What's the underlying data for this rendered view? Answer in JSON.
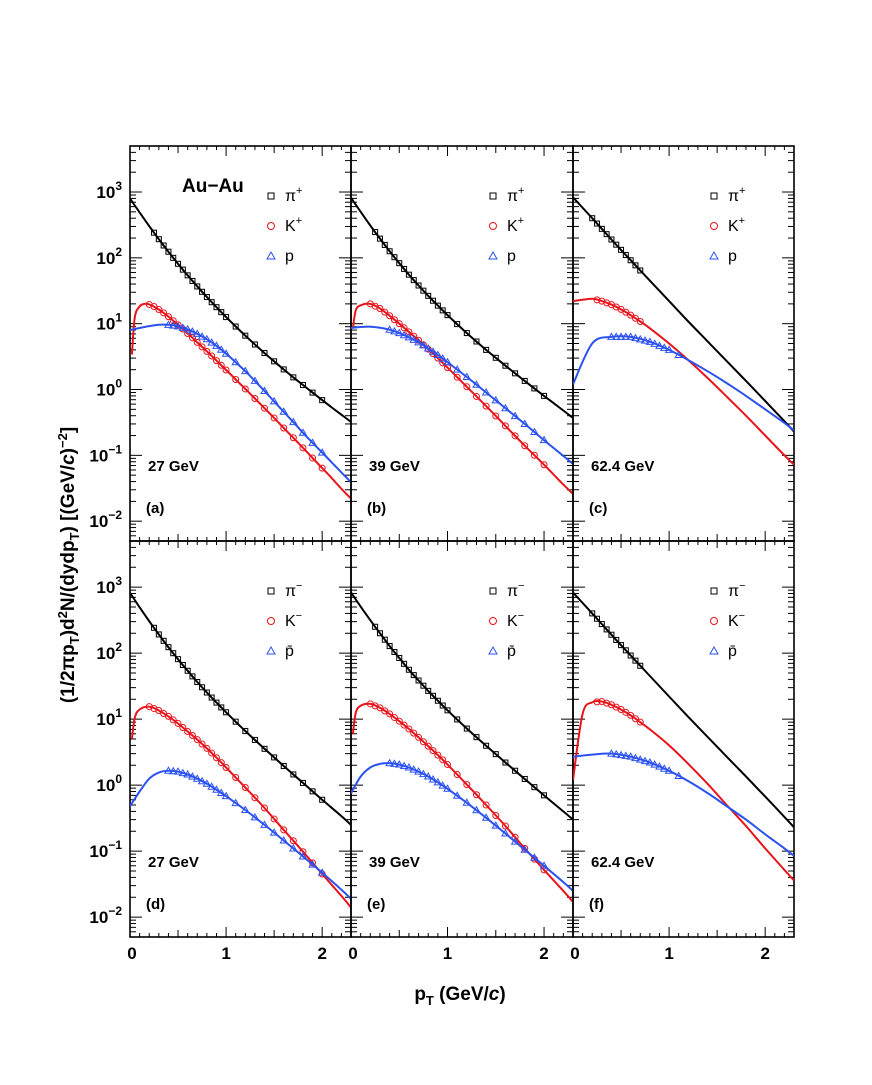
{
  "figure": {
    "ylabel_pre": "(1/2πp",
    "ylabel_mid": ")d",
    "ylabel_exp2": "2",
    "ylabel_n": "N/(dydp",
    "ylabel_end": ") [(GeV/",
    "ylabel_c": "c",
    "ylabel_end2": ")",
    "ylabel_expm2": "−2",
    "ylabel_close": "]",
    "ylabel_sub": "T",
    "xlabel_p": "p",
    "xlabel_sub": "T",
    "xlabel_unit": " (GeV/",
    "xlabel_c": "c",
    "xlabel_close": ")",
    "system_label": "Au−Au"
  },
  "colors": {
    "pion": "#000000",
    "kaon": "#e8141b",
    "proton": "#2b52f0"
  },
  "chart_data": [
    {
      "type": "scatter",
      "panel": "(a)",
      "energy": "27 GeV",
      "xlim": [
        0,
        2.3
      ],
      "ylim": [
        0.005,
        5000
      ],
      "yscale": "log",
      "xticks": [
        "0",
        "1",
        "2"
      ],
      "yticks": [
        "10^-2",
        "10^-1",
        "10^0",
        "10^1",
        "10^2",
        "10^3"
      ],
      "legend": [
        "π+",
        "K+",
        "p"
      ],
      "series": [
        {
          "name": "π+",
          "marker": "square",
          "fit": {
            "A": 800,
            "T": 0.245,
            "rise": 0
          },
          "x": [
            0.0,
            0.05,
            0.1,
            0.15,
            0.2,
            0.25,
            0.3,
            0.35,
            0.4,
            0.45,
            0.5,
            0.55,
            0.6,
            0.65,
            0.7,
            0.75,
            0.8,
            0.85,
            0.9,
            1.0,
            1.1,
            1.2,
            1.3,
            1.4,
            1.5,
            1.6,
            1.7,
            1.8,
            1.9,
            2.0,
            2.1,
            2.2,
            2.3
          ],
          "y": [
            800,
            625,
            490,
            385,
            304,
            241,
            192,
            154,
            124,
            100,
            81.2,
            66.2,
            54.2,
            44.6,
            36.8,
            30.5,
            25.4,
            21.2,
            17.8,
            12.6,
            9.05,
            6.58,
            4.83,
            3.58,
            2.68,
            2.02,
            1.53,
            1.17,
            0.897,
            0.69,
            0.533,
            0.414,
            0.322
          ]
        },
        {
          "name": "K+",
          "marker": "circle",
          "fit": {
            "A": 108,
            "T": 0.23,
            "rise": 0.12
          },
          "x": [
            0.02,
            0.05,
            0.1,
            0.15,
            0.2,
            0.25,
            0.3,
            0.35,
            0.4,
            0.45,
            0.5,
            0.55,
            0.6,
            0.65,
            0.7,
            0.8,
            0.9,
            1.0,
            1.1,
            1.2,
            1.3,
            1.4,
            1.5,
            1.6,
            1.7,
            1.8,
            1.9,
            2.0,
            2.1,
            2.2,
            2.3
          ],
          "y": [
            3.4,
            12.5,
            18.3,
            20.0,
            19.6,
            18.2,
            16.4,
            14.6,
            12.8,
            11.1,
            9.6,
            8.3,
            7.1,
            6.1,
            5.2,
            3.8,
            2.75,
            1.98,
            1.42,
            1.02,
            0.73,
            0.52,
            0.37,
            0.26,
            0.185,
            0.13,
            0.091,
            0.064,
            0.045,
            0.031,
            0.022
          ]
        },
        {
          "name": "p",
          "marker": "triangle",
          "fit": {
            "A": 11,
            "T": 0.4,
            "rise": 0
          },
          "x": [
            0.0,
            0.1,
            0.2,
            0.3,
            0.4,
            0.5,
            0.6,
            0.7,
            0.8,
            0.9,
            1.0,
            1.1,
            1.2,
            1.3,
            1.4,
            1.5,
            1.6,
            1.7,
            1.8,
            1.9,
            2.0,
            2.1,
            2.2,
            2.3
          ],
          "y": [
            8.0,
            8.6,
            9.2,
            9.6,
            9.6,
            9.1,
            8.2,
            7.0,
            5.8,
            4.6,
            3.5,
            2.6,
            1.9,
            1.35,
            0.95,
            0.66,
            0.46,
            0.32,
            0.22,
            0.155,
            0.11,
            0.078,
            0.055,
            0.039
          ]
        }
      ]
    },
    {
      "type": "scatter",
      "panel": "(b)",
      "energy": "39 GeV",
      "xlim": [
        0,
        2.3
      ],
      "ylim": [
        0.005,
        5000
      ],
      "yscale": "log",
      "xticks": [
        "0",
        "1",
        "2"
      ],
      "yticks": [],
      "legend": [
        "π+",
        "K+",
        "p"
      ],
      "series": [
        {
          "name": "π+",
          "marker": "square",
          "x": [
            0.0,
            0.1,
            0.2,
            0.3,
            0.4,
            0.5,
            0.6,
            0.7,
            0.8,
            0.9,
            1.0,
            1.2,
            1.4,
            1.6,
            1.8,
            2.0,
            2.2,
            2.3
          ],
          "y": [
            820,
            500,
            310,
            196,
            126,
            83,
            55.5,
            38,
            26.5,
            18.8,
            13.5,
            7.2,
            4.0,
            2.3,
            1.35,
            0.8,
            0.48,
            0.37
          ]
        },
        {
          "name": "K+",
          "marker": "circle",
          "x": [
            0.02,
            0.05,
            0.1,
            0.2,
            0.3,
            0.4,
            0.5,
            0.6,
            0.7,
            0.8,
            0.9,
            1.0,
            1.2,
            1.4,
            1.6,
            1.8,
            2.0,
            2.2,
            2.3
          ],
          "y": [
            8.5,
            16,
            19,
            20,
            17,
            13.2,
            10.0,
            7.5,
            5.6,
            4.1,
            3.0,
            2.15,
            1.1,
            0.56,
            0.28,
            0.14,
            0.072,
            0.036,
            0.026
          ]
        },
        {
          "name": "p",
          "marker": "triangle",
          "x": [
            0.0,
            0.1,
            0.2,
            0.3,
            0.4,
            0.5,
            0.6,
            0.7,
            0.8,
            0.9,
            1.0,
            1.2,
            1.4,
            1.6,
            1.8,
            2.0,
            2.2,
            2.3
          ],
          "y": [
            8.6,
            8.9,
            9.0,
            8.7,
            8.1,
            7.2,
            6.2,
            5.2,
            4.2,
            3.35,
            2.6,
            1.55,
            0.9,
            0.52,
            0.3,
            0.17,
            0.098,
            0.074
          ]
        }
      ]
    },
    {
      "type": "scatter",
      "panel": "(c)",
      "energy": "62.4 GeV",
      "xlim": [
        0,
        2.3
      ],
      "ylim": [
        0.005,
        5000
      ],
      "yscale": "log",
      "xticks": [
        "0",
        "1",
        "2"
      ],
      "yticks": [],
      "legend": [
        "π+",
        "K+",
        "p"
      ],
      "series": [
        {
          "name": "π+",
          "marker": "square",
          "x": [
            0.0,
            0.2,
            0.4,
            0.6,
            0.8,
            1.0,
            1.2,
            1.4,
            1.6,
            1.8,
            2.0,
            2.2,
            2.3
          ],
          "y": [
            830,
            400,
            190,
            92,
            45,
            22,
            10.8,
            5.4,
            2.7,
            1.35,
            0.67,
            0.33,
            0.23
          ]
        },
        {
          "name": "K+",
          "marker": "circle",
          "x": [
            0.0,
            0.2,
            0.3,
            0.4,
            0.5,
            0.6,
            0.7,
            0.8,
            1.0,
            1.2,
            1.4,
            1.6,
            1.8,
            2.0,
            2.2,
            2.3
          ],
          "y": [
            22,
            24,
            22,
            19.5,
            16.5,
            13.5,
            10.8,
            8.5,
            5.0,
            2.8,
            1.5,
            0.78,
            0.4,
            0.2,
            0.1,
            0.072
          ]
        },
        {
          "name": "p",
          "marker": "triangle",
          "x": [
            0.0,
            0.2,
            0.4,
            0.6,
            0.8,
            1.0,
            1.2,
            1.4,
            1.6,
            1.8,
            2.0,
            2.2,
            2.3
          ],
          "y": [
            1.2,
            5.0,
            6.3,
            6.3,
            5.3,
            4.0,
            2.8,
            1.9,
            1.25,
            0.8,
            0.5,
            0.31,
            0.24
          ]
        }
      ]
    },
    {
      "type": "scatter",
      "panel": "(d)",
      "energy": "27 GeV",
      "xlim": [
        0,
        2.3
      ],
      "ylim": [
        0.005,
        5000
      ],
      "yscale": "log",
      "xticks": [
        "0",
        "1",
        "2"
      ],
      "yticks": [
        "10^-2",
        "10^-1",
        "10^0",
        "10^1",
        "10^2",
        "10^3"
      ],
      "legend": [
        "π−",
        "K−",
        "p̄"
      ],
      "series": [
        {
          "name": "π−",
          "marker": "square",
          "x": [
            0.0,
            0.1,
            0.2,
            0.3,
            0.4,
            0.5,
            0.6,
            0.7,
            0.8,
            0.9,
            1.0,
            1.2,
            1.4,
            1.6,
            1.8,
            2.0,
            2.2,
            2.3
          ],
          "y": [
            820,
            495,
            305,
            192,
            123,
            81,
            54,
            36.5,
            25.3,
            17.8,
            12.7,
            6.6,
            3.55,
            1.95,
            1.08,
            0.6,
            0.34,
            0.25
          ]
        },
        {
          "name": "K−",
          "marker": "circle",
          "x": [
            0.02,
            0.05,
            0.1,
            0.2,
            0.3,
            0.4,
            0.5,
            0.6,
            0.7,
            0.8,
            0.9,
            1.0,
            1.2,
            1.4,
            1.6,
            1.8,
            2.0,
            2.2,
            2.3
          ],
          "y": [
            5,
            10.5,
            14,
            15.5,
            13.5,
            11,
            8.6,
            6.5,
            4.9,
            3.6,
            2.6,
            1.85,
            0.92,
            0.45,
            0.21,
            0.098,
            0.045,
            0.021,
            0.014
          ]
        },
        {
          "name": "p̄",
          "marker": "triangle",
          "x": [
            0.0,
            0.1,
            0.2,
            0.3,
            0.4,
            0.5,
            0.6,
            0.7,
            0.8,
            0.9,
            1.0,
            1.2,
            1.4,
            1.6,
            1.8,
            2.0,
            2.2,
            2.3
          ],
          "y": [
            0.48,
            0.8,
            1.25,
            1.55,
            1.65,
            1.6,
            1.45,
            1.25,
            1.05,
            0.85,
            0.68,
            0.42,
            0.25,
            0.145,
            0.083,
            0.047,
            0.026,
            0.019
          ]
        }
      ]
    },
    {
      "type": "scatter",
      "panel": "(e)",
      "energy": "39 GeV",
      "xlim": [
        0,
        2.3
      ],
      "ylim": [
        0.005,
        5000
      ],
      "yscale": "log",
      "xticks": [
        "0",
        "1",
        "2"
      ],
      "yticks": [],
      "legend": [
        "π−",
        "K−",
        "p̄"
      ],
      "series": [
        {
          "name": "π−",
          "marker": "square",
          "x": [
            0.0,
            0.1,
            0.2,
            0.3,
            0.4,
            0.5,
            0.6,
            0.7,
            0.8,
            0.9,
            1.0,
            1.2,
            1.4,
            1.6,
            1.8,
            2.0,
            2.2,
            2.3
          ],
          "y": [
            830,
            505,
            315,
            200,
            128,
            84.5,
            56,
            38.5,
            26.8,
            19,
            13.6,
            7.2,
            3.95,
            2.2,
            1.24,
            0.7,
            0.4,
            0.3
          ]
        },
        {
          "name": "K−",
          "marker": "circle",
          "x": [
            0.02,
            0.05,
            0.1,
            0.2,
            0.3,
            0.4,
            0.5,
            0.6,
            0.7,
            0.8,
            0.9,
            1.0,
            1.2,
            1.4,
            1.6,
            1.8,
            2.0,
            2.2,
            2.3
          ],
          "y": [
            6,
            12.5,
            16,
            17,
            14.8,
            12,
            9.3,
            7.1,
            5.3,
            3.9,
            2.85,
            2.05,
            1.02,
            0.5,
            0.24,
            0.11,
            0.052,
            0.025,
            0.017
          ]
        },
        {
          "name": "p̄",
          "marker": "triangle",
          "x": [
            0.0,
            0.1,
            0.2,
            0.3,
            0.4,
            0.5,
            0.6,
            0.7,
            0.8,
            0.9,
            1.0,
            1.2,
            1.4,
            1.6,
            1.8,
            2.0,
            2.2,
            2.3
          ],
          "y": [
            0.75,
            1.35,
            1.85,
            2.1,
            2.15,
            2.05,
            1.85,
            1.6,
            1.35,
            1.1,
            0.88,
            0.54,
            0.32,
            0.185,
            0.105,
            0.06,
            0.034,
            0.025
          ]
        }
      ]
    },
    {
      "type": "scatter",
      "panel": "(f)",
      "energy": "62.4 GeV",
      "xlim": [
        0,
        2.3
      ],
      "ylim": [
        0.005,
        5000
      ],
      "yscale": "log",
      "xticks": [
        "0",
        "1",
        "2"
      ],
      "yticks": [],
      "legend": [
        "π−",
        "K−",
        "p̄"
      ],
      "series": [
        {
          "name": "π−",
          "marker": "square",
          "x": [
            0.0,
            0.2,
            0.4,
            0.6,
            0.8,
            1.0,
            1.2,
            1.4,
            1.6,
            1.8,
            2.0,
            2.2,
            2.3
          ],
          "y": [
            830,
            400,
            190,
            92,
            45,
            22,
            10.8,
            5.4,
            2.7,
            1.35,
            0.67,
            0.33,
            0.23
          ]
        },
        {
          "name": "K−",
          "marker": "circle",
          "x": [
            0.0,
            0.1,
            0.2,
            0.3,
            0.4,
            0.5,
            0.6,
            0.7,
            0.8,
            1.0,
            1.2,
            1.4,
            1.6,
            1.8,
            2.0,
            2.2,
            2.3
          ],
          "y": [
            1.2,
            12,
            18,
            18.5,
            16.5,
            14,
            11.4,
            9.0,
            7.0,
            4.0,
            2.1,
            1.05,
            0.5,
            0.24,
            0.11,
            0.052,
            0.036
          ]
        },
        {
          "name": "p̄",
          "marker": "triangle",
          "x": [
            0.0,
            0.2,
            0.4,
            0.6,
            0.8,
            1.0,
            1.2,
            1.4,
            1.6,
            1.8,
            2.0,
            2.2,
            2.3
          ],
          "y": [
            2.7,
            2.9,
            3.0,
            2.7,
            2.2,
            1.65,
            1.15,
            0.76,
            0.48,
            0.3,
            0.18,
            0.11,
            0.085
          ]
        }
      ]
    }
  ]
}
